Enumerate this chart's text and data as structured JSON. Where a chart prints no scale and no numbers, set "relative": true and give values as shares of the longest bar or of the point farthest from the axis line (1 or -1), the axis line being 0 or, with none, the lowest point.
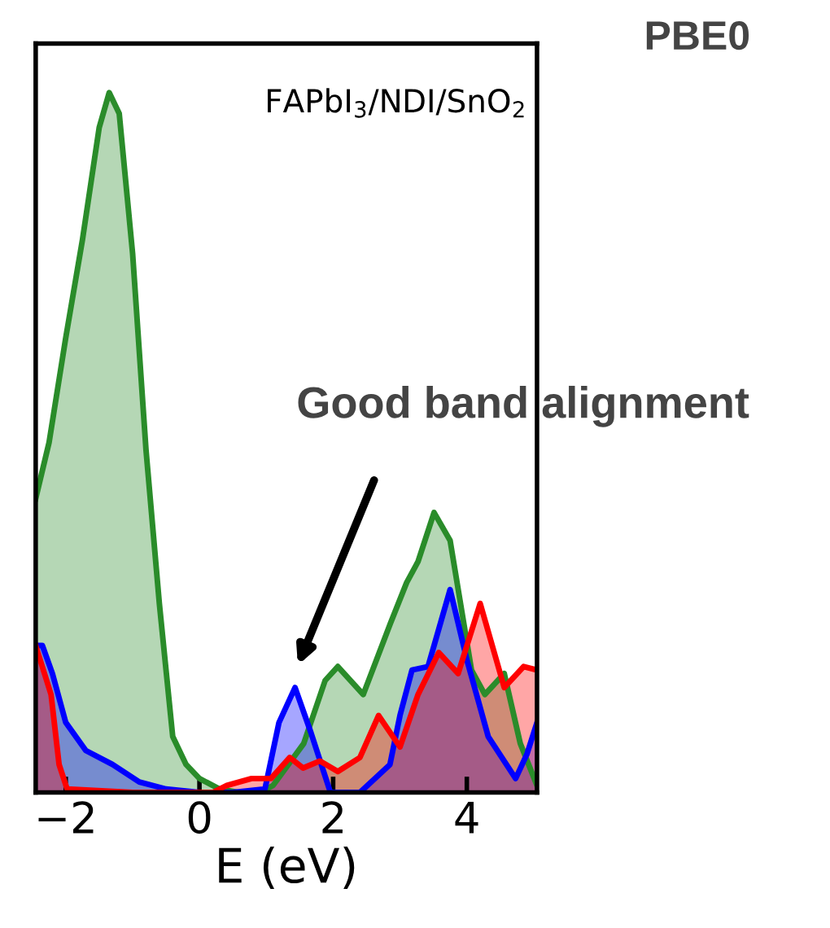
{
  "chart_data": {
    "type": "area",
    "title": "PBE0",
    "xlabel": "E (eV)",
    "relative": true,
    "tick_labels": "x",
    "grid": false,
    "legend": false,
    "xlim": [
      -2.45,
      5.05
    ],
    "xticks": [
      {
        "value": -2,
        "label": "−2"
      },
      0,
      2,
      4
    ],
    "annotations": [
      "FAPbI$_{3}$/NDI/SnO$_{2}$",
      "Good band alignment"
    ],
    "series": [
      {
        "color": "#2a8c2a",
        "x": [
          -2.45,
          -2.25,
          -2.0,
          -1.75,
          -1.5,
          -1.35,
          -1.2,
          -1.0,
          -0.8,
          -0.6,
          -0.4,
          -0.2,
          0,
          0.3,
          0.6,
          0.9,
          1.1,
          1.56,
          1.88,
          2.07,
          2.45,
          2.85,
          3.1,
          3.27,
          3.51,
          3.75,
          4.07,
          4.27,
          4.56,
          4.8,
          5.05
        ],
        "values": [
          0.42,
          0.5,
          0.65,
          0.79,
          0.95,
          1.0,
          0.97,
          0.77,
          0.49,
          0.27,
          0.08,
          0.04,
          0.02,
          0.005,
          0,
          0,
          0.01,
          0.07,
          0.16,
          0.18,
          0.14,
          0.24,
          0.3,
          0.33,
          0.4,
          0.36,
          0.175,
          0.14,
          0.17,
          0.07,
          0.01
        ]
      },
      {
        "color": "#0000ff",
        "x": [
          -2.45,
          -2.35,
          -2.2,
          -2.0,
          -1.7,
          -1.3,
          -0.9,
          -0.5,
          0,
          0.5,
          0.98,
          1.19,
          1.43,
          1.67,
          1.96,
          2.4,
          2.85,
          3.0,
          3.18,
          3.42,
          3.75,
          4.0,
          4.32,
          4.73,
          4.9,
          5.05
        ],
        "values": [
          0.21,
          0.21,
          0.17,
          0.1,
          0.06,
          0.04,
          0.015,
          0.005,
          0,
          0,
          0.005,
          0.1,
          0.15,
          0.085,
          0,
          0,
          0.04,
          0.11,
          0.175,
          0.18,
          0.29,
          0.19,
          0.08,
          0.02,
          0.055,
          0.1
        ]
      },
      {
        "color": "#ff0000",
        "x": [
          -2.45,
          -2.22,
          -2.1,
          -1.98,
          -1.0,
          0.0,
          0.2,
          0.41,
          0.78,
          1.07,
          1.35,
          1.55,
          1.8,
          2.07,
          2.4,
          2.68,
          3.0,
          3.27,
          3.58,
          3.87,
          4.2,
          4.56,
          4.85,
          5.05
        ],
        "values": [
          0.21,
          0.14,
          0.04,
          0.005,
          0,
          0,
          0,
          0.01,
          0.02,
          0.02,
          0.05,
          0.035,
          0.045,
          0.03,
          0.05,
          0.11,
          0.065,
          0.14,
          0.2,
          0.17,
          0.27,
          0.15,
          0.18,
          0.175
        ]
      }
    ]
  }
}
